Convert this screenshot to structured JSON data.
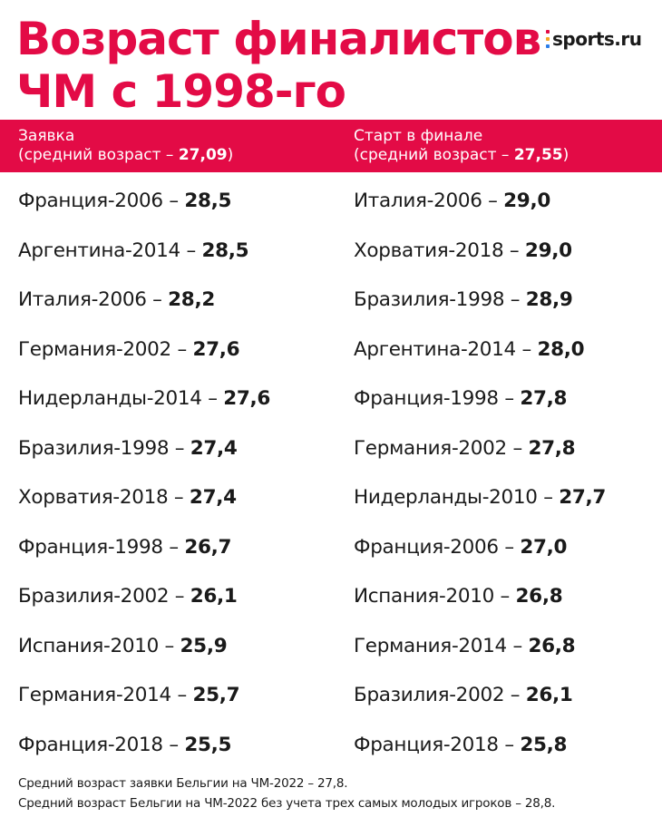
{
  "title": {
    "line1": "Возраст финалистов",
    "line2": "ЧМ с 1998-го"
  },
  "logo": {
    "text": "sports.ru",
    "colors": [
      "#e30b46",
      "#f5a623",
      "#2b7de9"
    ]
  },
  "header": {
    "left": {
      "title": "Заявка",
      "avg_prefix": "(средний возраст – ",
      "avg_value": "27,09",
      "avg_suffix": ")"
    },
    "right": {
      "title": "Старт в финале",
      "avg_prefix": "(средний возраст – ",
      "avg_value": "27,55",
      "avg_suffix": ")"
    }
  },
  "rows": [
    {
      "left_team": "Франция-2006",
      "left_age": "28,5",
      "right_team": "Италия-2006",
      "right_age": "29,0"
    },
    {
      "left_team": "Аргентина-2014",
      "left_age": "28,5",
      "right_team": "Хорватия-2018",
      "right_age": "29,0"
    },
    {
      "left_team": "Италия-2006",
      "left_age": "28,2",
      "right_team": "Бразилия-1998",
      "right_age": "28,9"
    },
    {
      "left_team": "Германия-2002",
      "left_age": "27,6",
      "right_team": "Аргентина-2014",
      "right_age": "28,0"
    },
    {
      "left_team": "Нидерланды-2014",
      "left_age": "27,6",
      "right_team": "Франция-1998",
      "right_age": "27,8"
    },
    {
      "left_team": "Бразилия-1998",
      "left_age": "27,4",
      "right_team": "Германия-2002",
      "right_age": "27,8"
    },
    {
      "left_team": "Хорватия-2018",
      "left_age": "27,4",
      "right_team": "Нидерланды-2010",
      "right_age": "27,7"
    },
    {
      "left_team": "Франция-1998",
      "left_age": "26,7",
      "right_team": "Франция-2006",
      "right_age": "27,0"
    },
    {
      "left_team": "Бразилия-2002",
      "left_age": "26,1",
      "right_team": "Испания-2010",
      "right_age": "26,8"
    },
    {
      "left_team": "Испания-2010",
      "left_age": "25,9",
      "right_team": "Германия-2014",
      "right_age": "26,8"
    },
    {
      "left_team": "Германия-2014",
      "left_age": "25,7",
      "right_team": "Бразилия-2002",
      "right_age": "26,1"
    },
    {
      "left_team": "Франция-2018",
      "left_age": "25,5",
      "right_team": "Франция-2018",
      "right_age": "25,8"
    }
  ],
  "separator": " – ",
  "footnotes": [
    "Средний возраст заявки Бельгии на ЧМ-2022 – 27,8.",
    "Средний возраст Бельгии на ЧМ-2022 без учета трех самых молодых игроков – 28,8."
  ]
}
